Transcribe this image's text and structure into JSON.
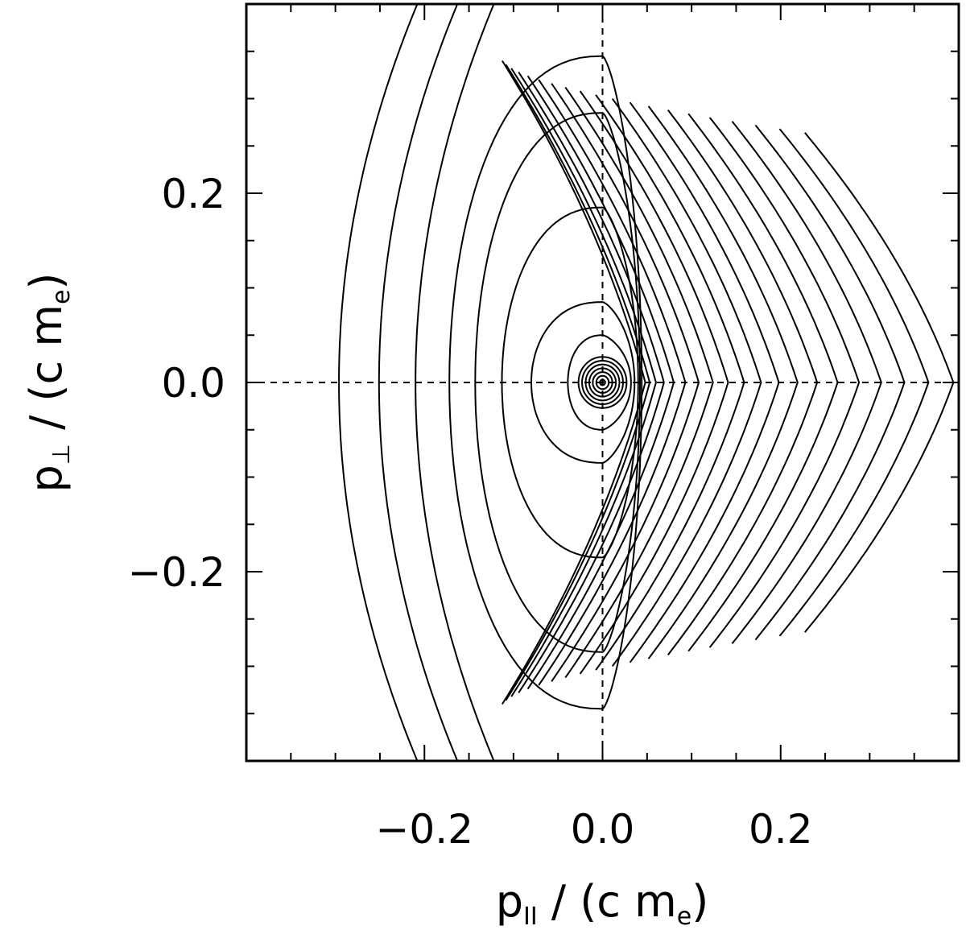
{
  "chart_data": {
    "type": "contour",
    "xlabel": {
      "main": "p",
      "sub": "II",
      "rest": " / (c m",
      "unit_sub": "e",
      "close": ")"
    },
    "ylabel": {
      "main": "p",
      "sub": "⊥",
      "rest": " / (c m",
      "unit_sub": "e",
      "close": ")"
    },
    "xlim": [
      -0.4,
      0.4
    ],
    "ylim": [
      -0.4,
      0.4
    ],
    "xticks": [
      {
        "value": -0.2,
        "label": "−0.2"
      },
      {
        "value": 0.0,
        "label": "0.0"
      },
      {
        "value": 0.2,
        "label": "0.2"
      }
    ],
    "yticks": [
      {
        "value": -0.2,
        "label": "−0.2"
      },
      {
        "value": 0.0,
        "label": "0.0"
      },
      {
        "value": 0.2,
        "label": "0.2"
      }
    ],
    "minor_tick_step": 0.05,
    "reference_lines": {
      "x": 0.0,
      "y": 0.0,
      "style": "dashed"
    },
    "center": [
      0.0,
      0.0
    ],
    "contours": {
      "inner_circle_radii": [
        0.003,
        0.007,
        0.011,
        0.015,
        0.019,
        0.023,
        0.027
      ],
      "closed_loops": [
        {
          "x_left": -0.039,
          "x_right": 0.032,
          "y_half_height": 0.05
        },
        {
          "x_left": -0.08,
          "x_right": 0.036,
          "y_half_height": 0.085
        },
        {
          "x_left": -0.113,
          "x_right": 0.04,
          "y_half_height": 0.185
        },
        {
          "x_left": -0.143,
          "x_right": 0.042,
          "y_half_height": 0.285
        },
        {
          "x_left": -0.172,
          "x_right": 0.044,
          "y_half_height": 0.345
        }
      ],
      "left_arcs_x_left": [
        -0.21,
        -0.251,
        -0.296
      ],
      "right_arcs_x_vertex": [
        0.048,
        0.053,
        0.06,
        0.069,
        0.08,
        0.093,
        0.108,
        0.124,
        0.141,
        0.159,
        0.178,
        0.198,
        0.219,
        0.241,
        0.264,
        0.288,
        0.313,
        0.339,
        0.366,
        0.394
      ]
    },
    "grid": false,
    "legend": "none"
  }
}
